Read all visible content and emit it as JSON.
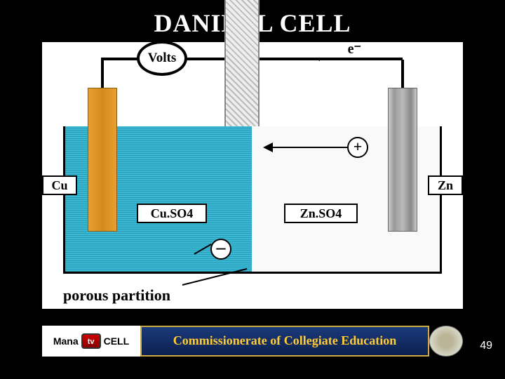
{
  "title": "DANIELL CELL",
  "voltmeter_label": "Volts",
  "electron_label": "e⁻",
  "electron_arrow": "←",
  "cu_label": "Cu",
  "zn_label": "Zn",
  "cuso4_label": "Cu.SO4",
  "znso4_label": "Zn.SO4",
  "plus": "+",
  "minus": "–",
  "porous_label": "porous partition",
  "footer": {
    "logo_left": "Mana",
    "logo_tv": "tv",
    "logo_right": "CELL",
    "text": "Commissionerate of Collegiate Education"
  },
  "page_number": "49",
  "colors": {
    "background": "#000000",
    "title_color": "#ffffff",
    "diagram_bg": "#ffffff",
    "cuso4_solution": "#3bb8d4",
    "cu_electrode": "#d68a20",
    "zn_electrode": "#999999",
    "footer_bg": "#1a3a7a",
    "footer_text": "#ffcc33"
  },
  "dimensions": {
    "slide_w": 720,
    "slide_h": 540
  }
}
